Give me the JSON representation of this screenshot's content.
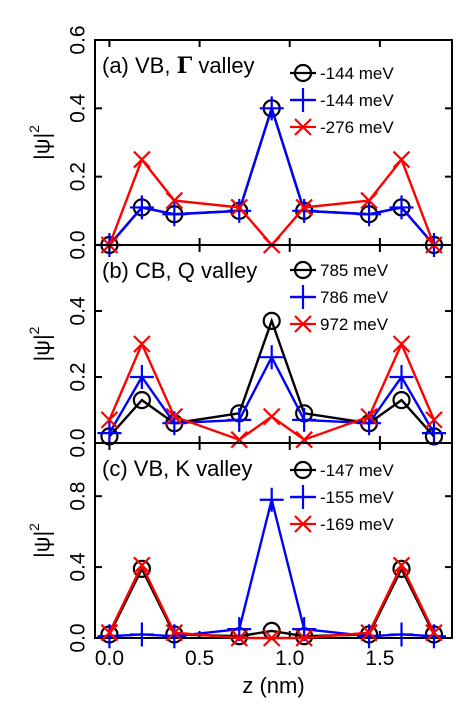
{
  "chart_data": {
    "type": "line",
    "xlabel": "z (nm)",
    "x_ticks": [
      "0.0",
      "0.5",
      "1.0",
      "1.5"
    ],
    "x_tick_values": [
      0.0,
      0.5,
      1.0,
      1.5
    ],
    "xlim": [
      -0.08,
      1.9
    ],
    "marker_styles": [
      "circle",
      "plus",
      "x"
    ],
    "colors": [
      "#000000",
      "#0000ff",
      "#ff0000"
    ],
    "panels": [
      {
        "title_prefix": "(a) VB, ",
        "title_symbol": "Γ",
        "title_suffix": " valley",
        "ylabel": "|ψ|",
        "ylabel_sup": "2",
        "ylim": [
          0.0,
          0.6
        ],
        "y_ticks": [
          "0.0",
          "0.2",
          "0.4",
          "0.6"
        ],
        "y_tick_values": [
          0.0,
          0.2,
          0.4,
          0.6
        ],
        "x": [
          0.0,
          0.18,
          0.36,
          0.72,
          0.9,
          1.08,
          1.44,
          1.62,
          1.8
        ],
        "series": [
          {
            "name": "-144 meV",
            "values": [
              0.0,
              0.11,
              0.09,
              0.1,
              0.4,
              0.1,
              0.09,
              0.11,
              0.0
            ]
          },
          {
            "name": "-144 meV",
            "values": [
              0.0,
              0.11,
              0.09,
              0.1,
              0.4,
              0.1,
              0.09,
              0.11,
              0.0
            ]
          },
          {
            "name": "-276 meV",
            "values": [
              0.0,
              0.25,
              0.13,
              0.11,
              0.0,
              0.11,
              0.13,
              0.25,
              0.0
            ]
          }
        ]
      },
      {
        "title_prefix": "(b) CB, Q valley",
        "title_symbol": "",
        "title_suffix": "",
        "ylabel": "|ψ|",
        "ylabel_sup": "2",
        "ylim": [
          0.0,
          0.6
        ],
        "y_ticks": [
          "0.0",
          "0.2",
          "0.4"
        ],
        "y_tick_values": [
          0.0,
          0.2,
          0.4
        ],
        "x": [
          0.0,
          0.18,
          0.36,
          0.72,
          0.9,
          1.08,
          1.44,
          1.62,
          1.8
        ],
        "series": [
          {
            "name": "785 meV",
            "values": [
              0.02,
              0.13,
              0.06,
              0.09,
              0.37,
              0.09,
              0.06,
              0.13,
              0.02
            ]
          },
          {
            "name": "786 meV",
            "values": [
              0.03,
              0.2,
              0.06,
              0.07,
              0.26,
              0.07,
              0.06,
              0.2,
              0.03
            ]
          },
          {
            "name": "972 meV",
            "values": [
              0.07,
              0.3,
              0.08,
              0.01,
              0.08,
              0.01,
              0.08,
              0.3,
              0.07
            ]
          }
        ]
      },
      {
        "title_prefix": "(c) VB, K valley",
        "title_symbol": "",
        "title_suffix": "",
        "ylabel": "|ψ|",
        "ylabel_sup": "2",
        "ylim": [
          0.0,
          1.1
        ],
        "y_ticks": [
          "0.0",
          "0.4",
          "0.8"
        ],
        "y_tick_values": [
          0.0,
          0.4,
          0.8
        ],
        "x": [
          0.0,
          0.18,
          0.36,
          0.72,
          0.9,
          1.08,
          1.44,
          1.62,
          1.8
        ],
        "series": [
          {
            "name": "-147 meV",
            "values": [
              0.02,
              0.39,
              0.02,
              0.01,
              0.04,
              0.01,
              0.02,
              0.39,
              0.02
            ]
          },
          {
            "name": "-155 meV",
            "values": [
              0.01,
              0.02,
              0.01,
              0.05,
              0.78,
              0.05,
              0.01,
              0.02,
              0.01
            ]
          },
          {
            "name": "-169 meV",
            "values": [
              0.03,
              0.41,
              0.03,
              0.0,
              0.0,
              0.0,
              0.03,
              0.41,
              0.03
            ]
          }
        ]
      }
    ]
  }
}
